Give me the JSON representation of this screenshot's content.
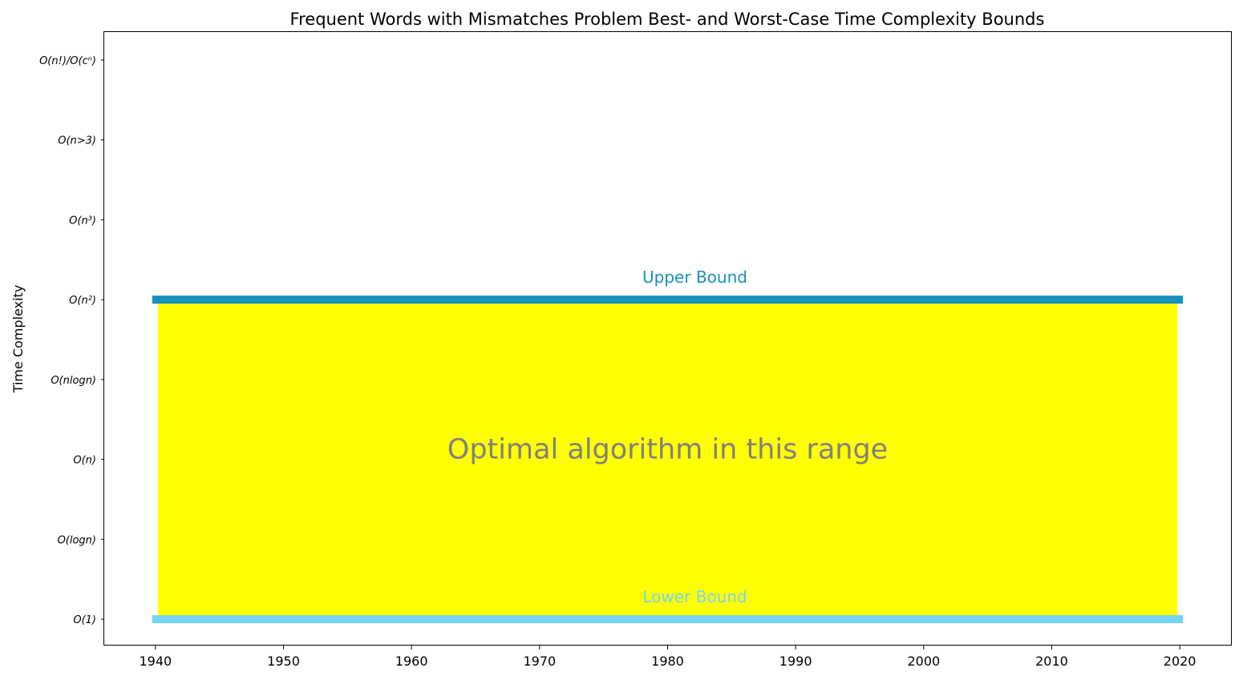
{
  "chart_data": {
    "type": "bar",
    "title": "Frequent Words with Mismatches Problem Best- and Worst-Case Time Complexity Bounds",
    "xlabel": "",
    "ylabel": "Time Complexity",
    "xlim": [
      1936,
      2024
    ],
    "ylim": [
      -0.33,
      7.35
    ],
    "x_ticks": [
      1940,
      1950,
      1960,
      1970,
      1980,
      1990,
      2000,
      2010,
      2020
    ],
    "y_ticks": [
      {
        "value": 0,
        "label": "O(1)"
      },
      {
        "value": 1,
        "label": "O(logn)"
      },
      {
        "value": 2,
        "label": "O(n)"
      },
      {
        "value": 3,
        "label": "O(nlogn)"
      },
      {
        "value": 4,
        "label": "O(n²)"
      },
      {
        "value": 5,
        "label": "O(n³)"
      },
      {
        "value": 6,
        "label": "O(n>3)"
      },
      {
        "value": 7,
        "label": "O(n!)/O(cⁿ)"
      }
    ],
    "bounds": [
      {
        "name": "Upper Bound",
        "level": 4,
        "x_start": 1940,
        "x_end": 2020,
        "color": "#1590bf"
      },
      {
        "name": "Lower Bound",
        "level": 0,
        "x_start": 1940,
        "x_end": 2020,
        "color": "#76d5f5"
      }
    ],
    "optimal_region": {
      "label": "Optimal algorithm in this range",
      "x_start": 1940,
      "x_end": 2020,
      "y_low": 0,
      "y_high": 4,
      "color": "#ffff00",
      "label_color": "#808080"
    },
    "grid": false
  }
}
